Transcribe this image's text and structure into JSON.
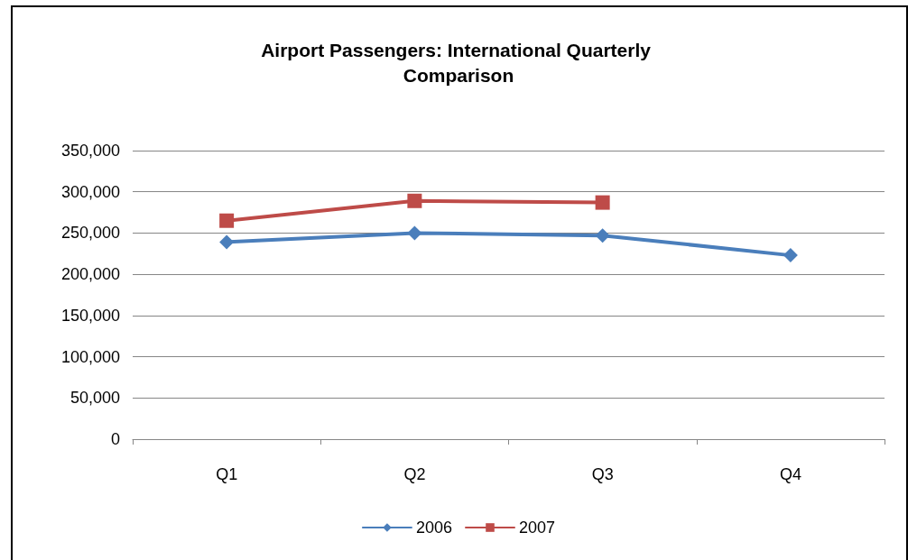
{
  "chart_data": {
    "type": "line",
    "title": "Airport Passengers: International Quarterly Comparison",
    "categories": [
      "Q1",
      "Q2",
      "Q3",
      "Q4"
    ],
    "series": [
      {
        "name": "2006",
        "color": "#4a7ebb",
        "marker": "diamond",
        "values": [
          239000,
          250000,
          247000,
          223000
        ]
      },
      {
        "name": "2007",
        "color": "#be4b48",
        "marker": "square",
        "values": [
          265000,
          289000,
          287000,
          null
        ]
      }
    ],
    "ylim": [
      0,
      350000
    ],
    "yticks": [
      {
        "value": 0,
        "label": "0"
      },
      {
        "value": 50000,
        "label": "50,000"
      },
      {
        "value": 100000,
        "label": "100,000"
      },
      {
        "value": 150000,
        "label": "150,000"
      },
      {
        "value": 200000,
        "label": "200,000"
      },
      {
        "value": 250000,
        "label": "250,000"
      },
      {
        "value": 300000,
        "label": "300,000"
      },
      {
        "value": 350000,
        "label": "350,000"
      }
    ],
    "grid": "y",
    "legend": "bottom",
    "line_style": "solid"
  }
}
